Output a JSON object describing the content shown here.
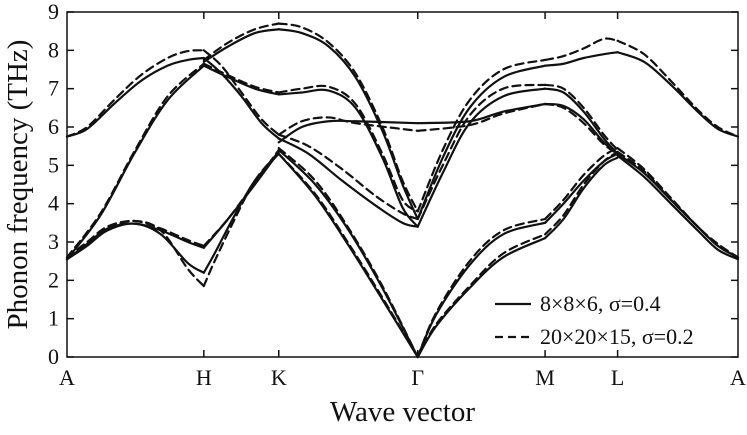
{
  "chart_data": {
    "type": "line",
    "title": "",
    "xlabel": "Wave vector",
    "ylabel": "Phonon frequency (THz)",
    "ylim": [
      0,
      9
    ],
    "yticks": [
      0,
      1,
      2,
      3,
      4,
      5,
      6,
      7,
      8,
      9
    ],
    "xlim": [
      0,
      1
    ],
    "xticks": [
      {
        "label": "A",
        "pos": 0.0
      },
      {
        "label": "H",
        "pos": 0.2039
      },
      {
        "label": "K",
        "pos": 0.3156
      },
      {
        "label": "Γ",
        "pos": 0.5227
      },
      {
        "label": "M",
        "pos": 0.7125
      },
      {
        "label": "L",
        "pos": 0.8206
      },
      {
        "label": "A",
        "pos": 1.0
      }
    ],
    "vertical_lines_at_ticks": false,
    "legend": {
      "position": "bottom-right",
      "entries": [
        {
          "label": "8×8×6, σ=0.4",
          "style": "solid"
        },
        {
          "label": "20×20×15, σ=0.2",
          "style": "dashed"
        }
      ]
    },
    "series": [
      {
        "name": "8×8×6, σ=0.4",
        "style": "solid",
        "branches": [
          {
            "x": [
              0,
              0.03,
              0.06,
              0.1,
              0.14,
              0.18,
              0.2039
            ],
            "y": [
              2.55,
              2.9,
              3.3,
              3.48,
              3.2,
              2.45,
              2.2
            ]
          },
          {
            "x": [
              0.2039,
              0.22,
              0.25,
              0.28,
              0.3156
            ],
            "y": [
              2.2,
              2.7,
              3.7,
              4.6,
              5.3
            ]
          },
          {
            "x": [
              0,
              0.03,
              0.06,
              0.1,
              0.14,
              0.18,
              0.2039
            ],
            "y": [
              2.55,
              2.95,
              3.35,
              3.48,
              3.3,
              3.0,
              2.85
            ]
          },
          {
            "x": [
              0.2039,
              0.24,
              0.28,
              0.3156
            ],
            "y": [
              2.85,
              3.6,
              4.5,
              5.35
            ]
          },
          {
            "x": [
              0,
              0.05,
              0.1,
              0.15,
              0.2039
            ],
            "y": [
              2.55,
              3.7,
              5.3,
              6.7,
              7.6
            ]
          },
          {
            "x": [
              0.2039,
              0.24,
              0.28,
              0.3156
            ],
            "y": [
              7.6,
              7.3,
              7.0,
              6.85
            ]
          },
          {
            "x": [
              0,
              0.03,
              0.07,
              0.11,
              0.15,
              0.18,
              0.2039
            ],
            "y": [
              5.75,
              5.95,
              6.6,
              7.2,
              7.6,
              7.75,
              7.8
            ]
          },
          {
            "x": [
              0.2039,
              0.23,
              0.26,
              0.29,
              0.3156
            ],
            "y": [
              7.8,
              7.4,
              6.8,
              6.1,
              5.7
            ]
          },
          {
            "x": [
              0.2039,
              0.24,
              0.28,
              0.3156
            ],
            "y": [
              7.7,
              8.1,
              8.45,
              8.55
            ]
          },
          {
            "x": [
              0.3156,
              0.37,
              0.42,
              0.47,
              0.5227
            ],
            "y": [
              5.4,
              4.5,
              3.3,
              1.8,
              0.0
            ]
          },
          {
            "x": [
              0.3156,
              0.37,
              0.42,
              0.47,
              0.5227
            ],
            "y": [
              5.3,
              4.2,
              2.9,
              1.5,
              0.0
            ]
          },
          {
            "x": [
              0.3156,
              0.36,
              0.41,
              0.46,
              0.5,
              0.5227
            ],
            "y": [
              5.7,
              5.3,
              4.6,
              3.95,
              3.5,
              3.4
            ]
          },
          {
            "x": [
              0.3156,
              0.35,
              0.39,
              0.43,
              0.47,
              0.5,
              0.5227
            ],
            "y": [
              6.85,
              6.9,
              6.95,
              6.5,
              5.2,
              3.9,
              3.4
            ]
          },
          {
            "x": [
              0.3156,
              0.35,
              0.39,
              0.43,
              0.47,
              0.5,
              0.5227
            ],
            "y": [
              8.55,
              8.45,
              8.1,
              7.3,
              5.9,
              4.5,
              3.6
            ]
          },
          {
            "x": [
              0.3156,
              0.35,
              0.39,
              0.43,
              0.5227
            ],
            "y": [
              5.6,
              6.0,
              6.15,
              6.15,
              6.1
            ]
          },
          {
            "x": [
              0.5227,
              0.55,
              0.6,
              0.65,
              0.7125
            ],
            "y": [
              0.0,
              0.8,
              1.8,
              2.6,
              3.1
            ]
          },
          {
            "x": [
              0.5227,
              0.55,
              0.6,
              0.65,
              0.7125
            ],
            "y": [
              0.0,
              1.1,
              2.4,
              3.2,
              3.5
            ]
          },
          {
            "x": [
              0.5227,
              0.56,
              0.6,
              0.65,
              0.7125
            ],
            "y": [
              3.4,
              4.8,
              6.1,
              6.8,
              7.0
            ]
          },
          {
            "x": [
              0.5227,
              0.56,
              0.6,
              0.65,
              0.7125
            ],
            "y": [
              3.6,
              5.2,
              6.5,
              7.3,
              7.6
            ]
          },
          {
            "x": [
              0.5227,
              0.6,
              0.65,
              0.7125
            ],
            "y": [
              6.1,
              6.15,
              6.4,
              6.6
            ]
          },
          {
            "x": [
              0.7125,
              0.74,
              0.77,
              0.8,
              0.8206
            ],
            "y": [
              3.1,
              3.6,
              4.4,
              5.0,
              5.2
            ]
          },
          {
            "x": [
              0.7125,
              0.74,
              0.77,
              0.8,
              0.8206
            ],
            "y": [
              3.5,
              4.0,
              4.6,
              5.1,
              5.3
            ]
          },
          {
            "x": [
              0.7125,
              0.74,
              0.77,
              0.8,
              0.8206
            ],
            "y": [
              7.0,
              6.9,
              6.4,
              5.7,
              5.3
            ]
          },
          {
            "x": [
              0.7125,
              0.74,
              0.77,
              0.8,
              0.8206
            ],
            "y": [
              6.6,
              6.55,
              6.2,
              5.6,
              5.3
            ]
          },
          {
            "x": [
              0.7125,
              0.74,
              0.77,
              0.8,
              0.8206
            ],
            "y": [
              7.6,
              7.65,
              7.8,
              7.9,
              7.95
            ]
          },
          {
            "x": [
              0.8206,
              0.86,
              0.9,
              0.94,
              0.97,
              1.0
            ],
            "y": [
              5.25,
              4.7,
              4.0,
              3.3,
              2.8,
              2.55
            ]
          },
          {
            "x": [
              0.8206,
              0.86,
              0.9,
              0.94,
              0.97,
              1.0
            ],
            "y": [
              5.3,
              4.8,
              4.1,
              3.4,
              2.9,
              2.6
            ]
          },
          {
            "x": [
              0.8206,
              0.86,
              0.9,
              0.94,
              0.97,
              1.0
            ],
            "y": [
              7.95,
              7.7,
              7.1,
              6.4,
              5.95,
              5.75
            ]
          }
        ]
      },
      {
        "name": "20×20×15, σ=0.2",
        "style": "dashed",
        "branches": [
          {
            "x": [
              0,
              0.03,
              0.06,
              0.1,
              0.14,
              0.18,
              0.2039
            ],
            "y": [
              2.55,
              2.95,
              3.35,
              3.55,
              3.3,
              2.3,
              1.85
            ]
          },
          {
            "x": [
              0.2039,
              0.22,
              0.25,
              0.28,
              0.3156
            ],
            "y": [
              1.85,
              2.5,
              3.6,
              4.6,
              5.35
            ]
          },
          {
            "x": [
              0,
              0.03,
              0.06,
              0.1,
              0.14,
              0.18,
              0.2039
            ],
            "y": [
              2.6,
              3.0,
              3.4,
              3.55,
              3.35,
              3.05,
              2.9
            ]
          },
          {
            "x": [
              0.2039,
              0.24,
              0.28,
              0.3156
            ],
            "y": [
              2.9,
              3.6,
              4.55,
              5.4
            ]
          },
          {
            "x": [
              0,
              0.05,
              0.1,
              0.15,
              0.2039
            ],
            "y": [
              2.6,
              3.75,
              5.35,
              6.8,
              7.65
            ]
          },
          {
            "x": [
              0.2039,
              0.24,
              0.28,
              0.3156
            ],
            "y": [
              7.65,
              7.35,
              7.05,
              6.9
            ]
          },
          {
            "x": [
              0,
              0.03,
              0.07,
              0.11,
              0.15,
              0.18,
              0.2039
            ],
            "y": [
              5.75,
              6.0,
              6.7,
              7.35,
              7.8,
              7.98,
              8.0
            ]
          },
          {
            "x": [
              0.2039,
              0.23,
              0.26,
              0.29,
              0.3156
            ],
            "y": [
              8.0,
              7.6,
              6.9,
              6.2,
              5.8
            ]
          },
          {
            "x": [
              0.2039,
              0.24,
              0.28,
              0.3156
            ],
            "y": [
              7.75,
              8.2,
              8.55,
              8.7
            ]
          },
          {
            "x": [
              0.3156,
              0.37,
              0.42,
              0.47,
              0.5227
            ],
            "y": [
              5.45,
              4.6,
              3.35,
              1.85,
              0.0
            ]
          },
          {
            "x": [
              0.3156,
              0.37,
              0.42,
              0.47,
              0.5227
            ],
            "y": [
              5.3,
              4.25,
              2.95,
              1.55,
              0.0
            ]
          },
          {
            "x": [
              0.3156,
              0.36,
              0.41,
              0.46,
              0.5,
              0.5227
            ],
            "y": [
              5.8,
              5.5,
              4.9,
              4.2,
              3.75,
              3.6
            ]
          },
          {
            "x": [
              0.3156,
              0.35,
              0.39,
              0.43,
              0.47,
              0.5,
              0.5227
            ],
            "y": [
              6.9,
              7.0,
              7.05,
              6.6,
              5.3,
              4.1,
              3.8
            ]
          },
          {
            "x": [
              0.3156,
              0.35,
              0.39,
              0.43,
              0.47,
              0.5,
              0.5227
            ],
            "y": [
              8.7,
              8.6,
              8.2,
              7.4,
              6.0,
              4.6,
              3.8
            ]
          },
          {
            "x": [
              0.3156,
              0.35,
              0.39,
              0.43,
              0.5227
            ],
            "y": [
              5.8,
              6.15,
              6.25,
              6.1,
              5.9
            ]
          },
          {
            "x": [
              0.5227,
              0.55,
              0.6,
              0.65,
              0.7125
            ],
            "y": [
              0.0,
              0.85,
              1.85,
              2.7,
              3.2
            ]
          },
          {
            "x": [
              0.5227,
              0.55,
              0.6,
              0.65,
              0.7125
            ],
            "y": [
              0.0,
              1.15,
              2.5,
              3.3,
              3.6
            ]
          },
          {
            "x": [
              0.5227,
              0.56,
              0.6,
              0.65,
              0.7125
            ],
            "y": [
              3.6,
              5.0,
              6.3,
              7.0,
              7.1
            ]
          },
          {
            "x": [
              0.5227,
              0.56,
              0.6,
              0.65,
              0.7125
            ],
            "y": [
              3.8,
              5.4,
              6.7,
              7.5,
              7.75
            ]
          },
          {
            "x": [
              0.5227,
              0.6,
              0.65,
              0.7125
            ],
            "y": [
              5.9,
              6.05,
              6.35,
              6.6
            ]
          },
          {
            "x": [
              0.7125,
              0.74,
              0.77,
              0.8,
              0.8206
            ],
            "y": [
              3.2,
              3.7,
              4.5,
              5.1,
              5.35
            ]
          },
          {
            "x": [
              0.7125,
              0.74,
              0.77,
              0.8,
              0.8206
            ],
            "y": [
              3.6,
              4.1,
              4.75,
              5.25,
              5.45
            ]
          },
          {
            "x": [
              0.7125,
              0.74,
              0.77,
              0.8,
              0.8206
            ],
            "y": [
              7.1,
              7.0,
              6.5,
              5.8,
              5.4
            ]
          },
          {
            "x": [
              0.7125,
              0.74,
              0.77,
              0.8,
              0.8206
            ],
            "y": [
              6.6,
              6.5,
              6.1,
              5.55,
              5.3
            ]
          },
          {
            "x": [
              0.7125,
              0.74,
              0.77,
              0.8,
              0.8206
            ],
            "y": [
              7.75,
              7.85,
              8.05,
              8.3,
              8.25
            ]
          },
          {
            "x": [
              0.8206,
              0.86,
              0.9,
              0.94,
              0.97,
              1.0
            ],
            "y": [
              5.45,
              4.9,
              4.15,
              3.4,
              2.95,
              2.6
            ]
          },
          {
            "x": [
              0.8206,
              0.86,
              0.9,
              0.94,
              0.97,
              1.0
            ],
            "y": [
              5.35,
              4.85,
              4.1,
              3.4,
              2.9,
              2.6
            ]
          },
          {
            "x": [
              0.8206,
              0.86,
              0.9,
              0.94,
              0.97,
              1.0
            ],
            "y": [
              8.25,
              7.9,
              7.2,
              6.45,
              6.0,
              5.75
            ]
          }
        ]
      }
    ]
  }
}
